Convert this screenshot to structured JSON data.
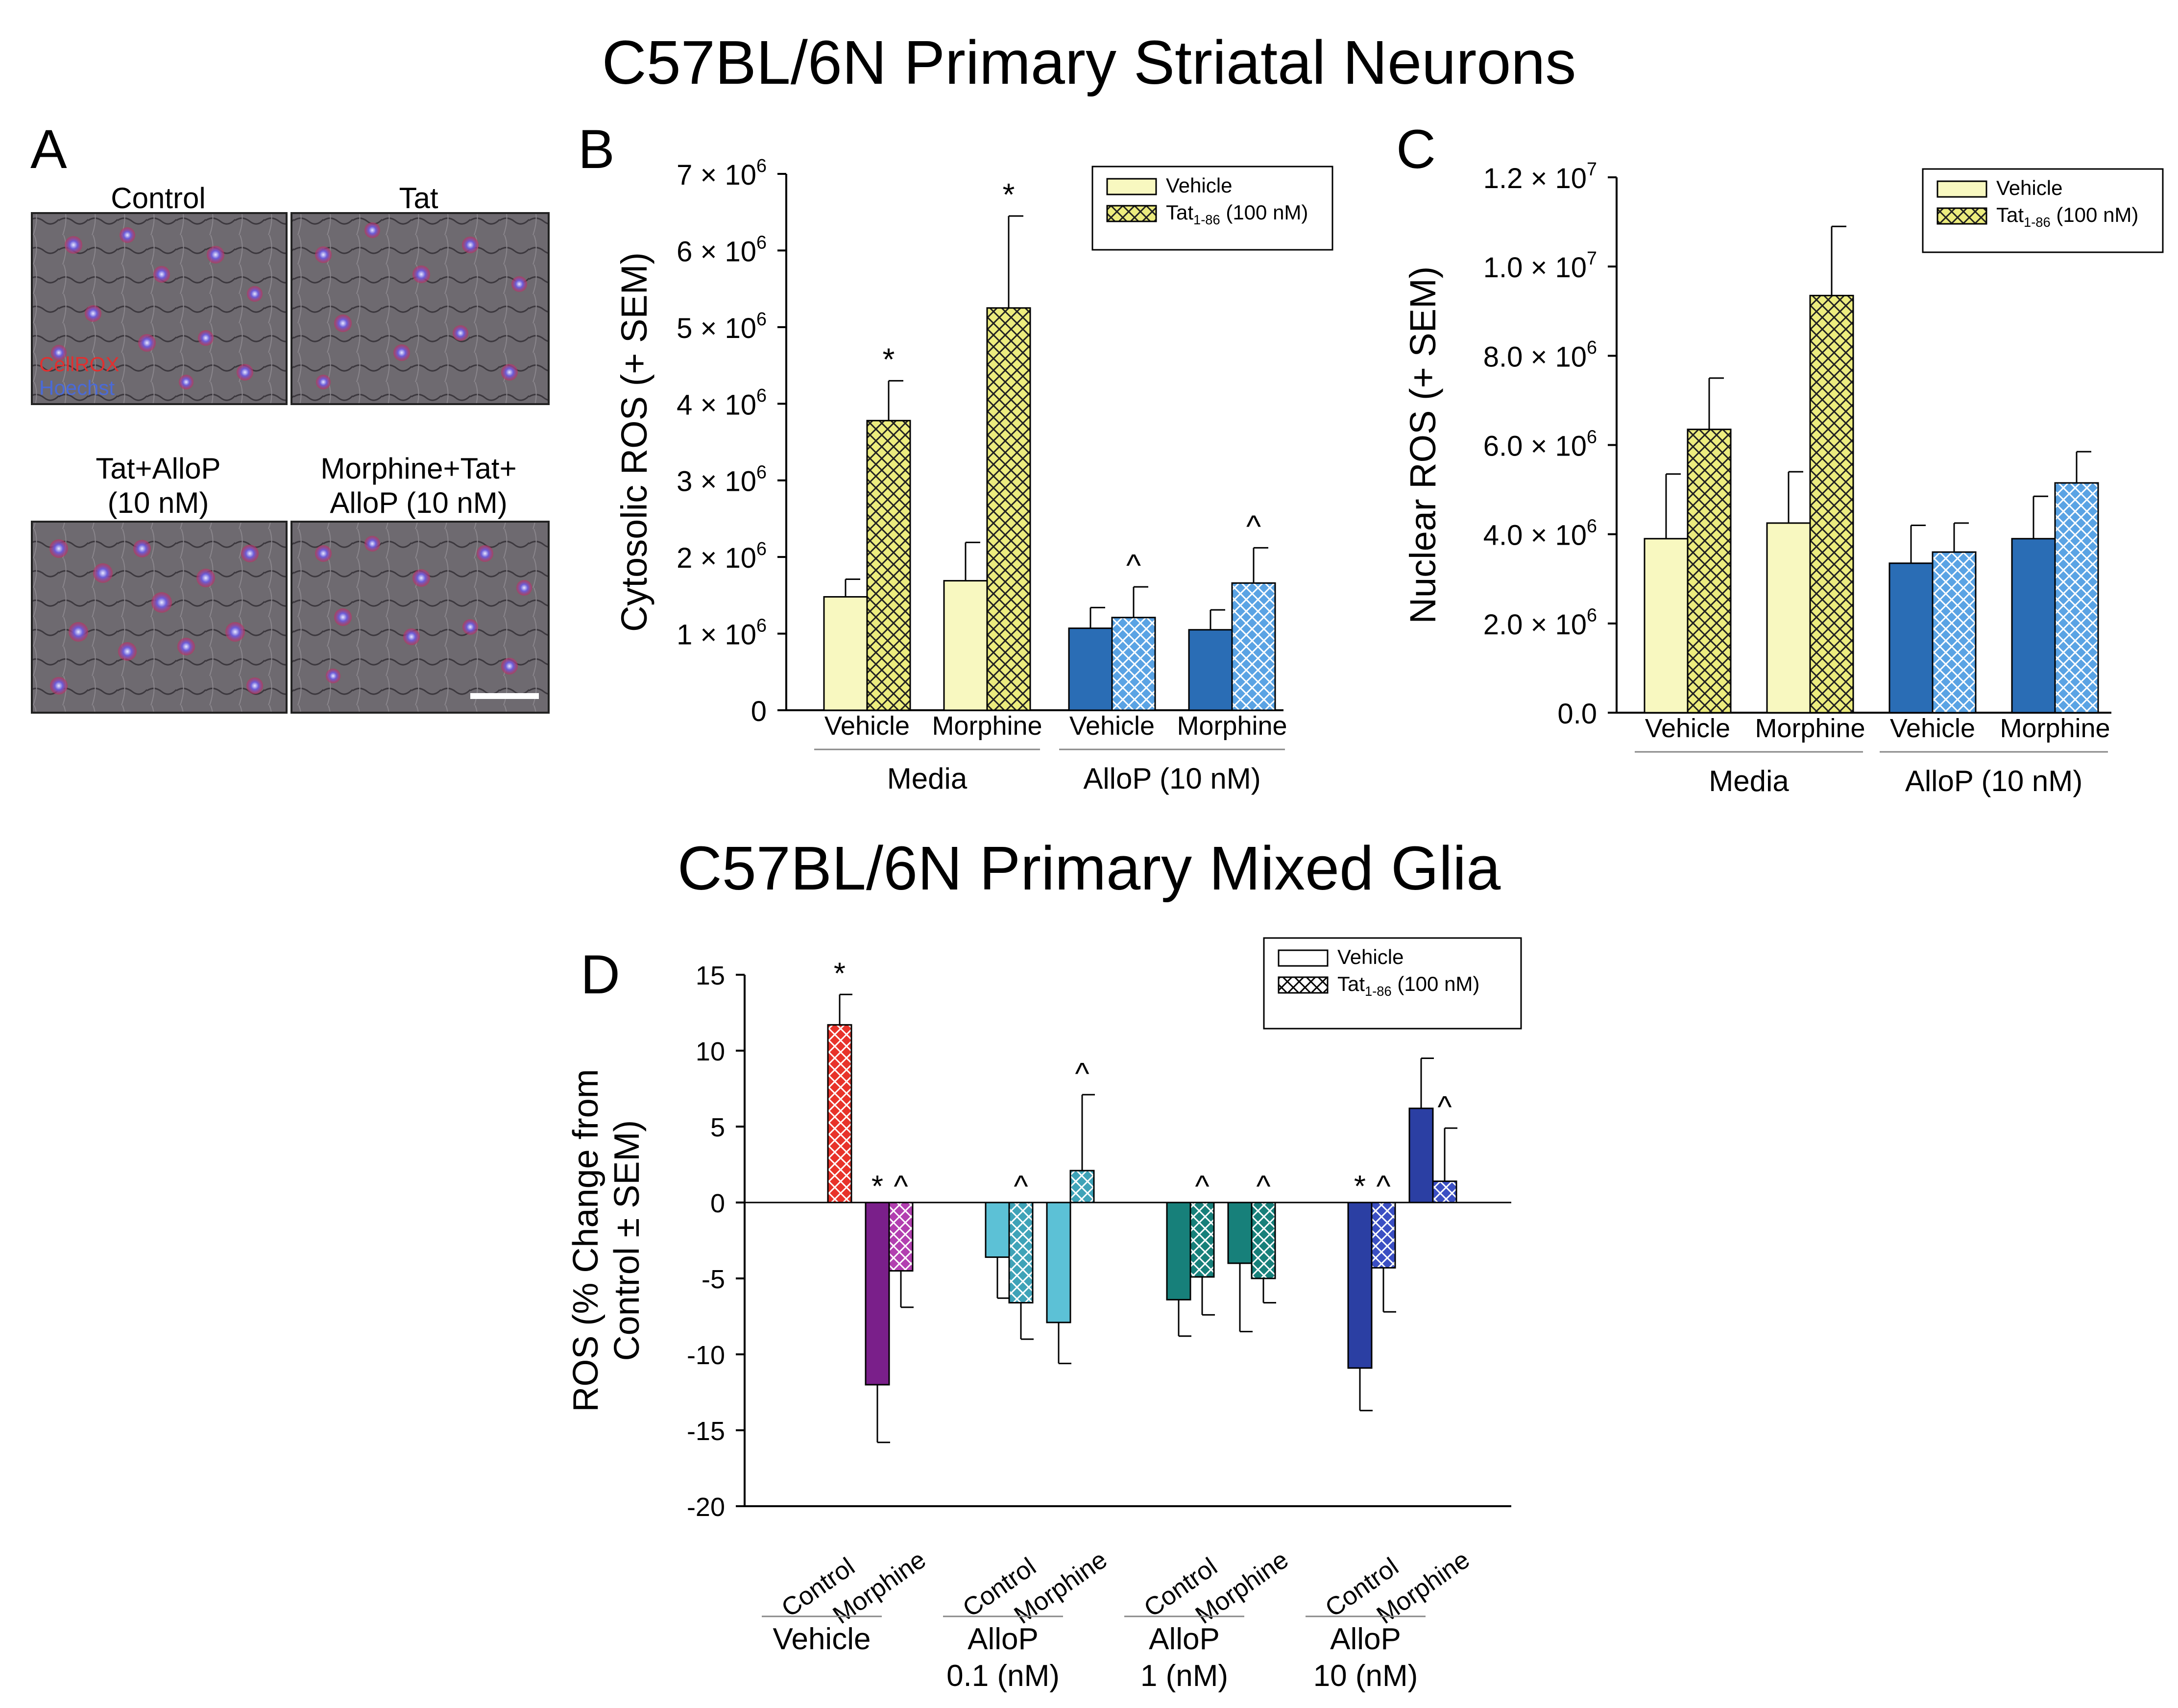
{
  "figure": {
    "title_top": "C57BL/6N Primary Striatal Neurons",
    "title_bottom": "C57BL/6N Primary Mixed Glia",
    "colors": {
      "vehicle_yellow": "#f8f8c0",
      "tat_yellow": "#ecec7e",
      "alloP_blue": "#2a6db5",
      "alloP_blue_light": "#5aa3e4"
    }
  },
  "panelA": {
    "label": "A",
    "images": [
      {
        "caption": "Control",
        "overlay_lines": [
          "CellROX",
          "Hoechst"
        ]
      },
      {
        "caption": "Tat"
      },
      {
        "caption_lines": [
          "Tat+AlloP",
          "(10 nM)"
        ]
      },
      {
        "caption_lines": [
          "Morphine+Tat+",
          "AlloP (10 nM)"
        ]
      }
    ]
  },
  "panelB": {
    "label": "B",
    "chart_data": {
      "type": "bar",
      "ylabel": "Cytosolic ROS (+ SEM)",
      "ylim": [
        0,
        7000000
      ],
      "yticks": [
        0,
        1000000,
        2000000,
        3000000,
        4000000,
        5000000,
        6000000,
        7000000
      ],
      "ytick_labels": [
        "0",
        "1 × 10^6",
        "2 × 10^6",
        "3 × 10^6",
        "4 × 10^6",
        "5 × 10^6",
        "6 × 10^6",
        "7 × 10^6"
      ],
      "categories": [
        "Vehicle",
        "Morphine",
        "Vehicle",
        "Morphine"
      ],
      "groups": [
        {
          "label": "Media",
          "span": [
            0,
            1
          ]
        },
        {
          "label": "AlloP (10 nM)",
          "span": [
            2,
            3
          ]
        }
      ],
      "legend": [
        {
          "name": "Vehicle"
        },
        {
          "name": "Tat",
          "sub": "1-86",
          "suffix": " (100 nM)"
        }
      ],
      "series": [
        {
          "name": "Vehicle",
          "values": [
            1480000,
            1690000,
            1070000,
            1050000
          ],
          "errors": [
            230000,
            500000,
            270000,
            260000
          ],
          "marks": [
            "",
            "",
            "",
            ""
          ]
        },
        {
          "name": "Tat1-86 (100 nM)",
          "values": [
            3780000,
            5250000,
            1210000,
            1660000
          ],
          "errors": [
            520000,
            1200000,
            400000,
            460000
          ],
          "marks": [
            "*",
            "*",
            "^",
            "^"
          ]
        }
      ]
    }
  },
  "panelC": {
    "label": "C",
    "chart_data": {
      "type": "bar",
      "ylabel": "Nuclear ROS (+ SEM)",
      "ylim": [
        0,
        12000000
      ],
      "yticks": [
        0,
        2000000,
        4000000,
        6000000,
        8000000,
        10000000,
        12000000
      ],
      "ytick_labels": [
        "0.0",
        "2.0 × 10^6",
        "4.0 × 10^6",
        "6.0 × 10^6",
        "8.0 × 10^6",
        "1.0 × 10^7",
        "1.2 × 10^7"
      ],
      "categories": [
        "Vehicle",
        "Morphine",
        "Vehicle",
        "Morphine"
      ],
      "groups": [
        {
          "label": "Media",
          "span": [
            0,
            1
          ]
        },
        {
          "label": "AlloP (10 nM)",
          "span": [
            2,
            3
          ]
        }
      ],
      "legend": [
        {
          "name": "Vehicle"
        },
        {
          "name": "Tat",
          "sub": "1-86",
          "suffix": " (100 nM)"
        }
      ],
      "series": [
        {
          "name": "Vehicle",
          "values": [
            3900000,
            4250000,
            3350000,
            3900000
          ],
          "errors": [
            1450000,
            1150000,
            850000,
            950000
          ],
          "marks": [
            "",
            "",
            "",
            ""
          ]
        },
        {
          "name": "Tat1-86 (100 nM)",
          "values": [
            6350000,
            9350000,
            3600000,
            5150000
          ],
          "errors": [
            1150000,
            1550000,
            650000,
            700000
          ],
          "marks": [
            "",
            "",
            "",
            ""
          ]
        }
      ]
    }
  },
  "panelD": {
    "label": "D",
    "chart_data": {
      "type": "bar",
      "ylabel_lines": [
        "ROS (% Change from",
        "Control ± SEM)"
      ],
      "ylim": [
        -20,
        15
      ],
      "yticks": [
        -20,
        -15,
        -10,
        -5,
        0,
        5,
        10,
        15
      ],
      "ytick_labels": [
        "-20",
        "-15",
        "-10",
        "-5",
        "0",
        "5",
        "10",
        "15"
      ],
      "categories": [
        "Control",
        "Morphine",
        "Control",
        "Morphine",
        "Control",
        "Morphine",
        "Control",
        "Morphine"
      ],
      "groups": [
        {
          "lines": [
            "Vehicle"
          ],
          "span": [
            0,
            1
          ]
        },
        {
          "lines": [
            "AlloP",
            "0.1 (nM)"
          ],
          "span": [
            2,
            3
          ]
        },
        {
          "lines": [
            "AlloP",
            "1 (nM)"
          ],
          "span": [
            4,
            5
          ]
        },
        {
          "lines": [
            "AlloP",
            "10 (nM)"
          ],
          "span": [
            6,
            7
          ]
        }
      ],
      "legend": [
        {
          "name": "Vehicle"
        },
        {
          "name": "Tat",
          "sub": "1-86",
          "suffix": " (100 nM)"
        }
      ],
      "series": [
        {
          "name": "Vehicle",
          "values": [
            null,
            -12.0,
            -3.6,
            -7.9,
            -6.4,
            -4.0,
            -10.9,
            6.2
          ],
          "errors": [
            0,
            3.8,
            2.7,
            2.7,
            2.4,
            4.5,
            2.8,
            3.3
          ],
          "marks": [
            "",
            "*",
            "",
            "",
            "",
            "",
            "*",
            ""
          ]
        },
        {
          "name": "Tat1-86 (100 nM)",
          "values": [
            11.7,
            -4.5,
            -6.6,
            2.1,
            -4.9,
            -5.0,
            -4.3,
            1.4
          ],
          "errors": [
            2.0,
            2.4,
            2.4,
            5.0,
            2.5,
            1.6,
            2.9,
            3.5
          ],
          "marks": [
            "*",
            "^",
            "^",
            "^",
            "^",
            "^",
            "^",
            "^"
          ]
        }
      ],
      "bar_colors": [
        {
          "vehicle": "#e8332a",
          "tat": "#e8332a"
        },
        {
          "vehicle": "#7a1f8a",
          "tat": "#b23fb0"
        },
        {
          "vehicle": "#5cc1d6",
          "tat": "#3fa3b8"
        },
        {
          "vehicle": "#5cc1d6",
          "tat": "#3fa3b8"
        },
        {
          "vehicle": "#17807a",
          "tat": "#17807a"
        },
        {
          "vehicle": "#17807a",
          "tat": "#17807a"
        },
        {
          "vehicle": "#2b3fa3",
          "tat": "#3b4fc3"
        },
        {
          "vehicle": "#2b3fa3",
          "tat": "#3b4fc3"
        }
      ]
    }
  }
}
